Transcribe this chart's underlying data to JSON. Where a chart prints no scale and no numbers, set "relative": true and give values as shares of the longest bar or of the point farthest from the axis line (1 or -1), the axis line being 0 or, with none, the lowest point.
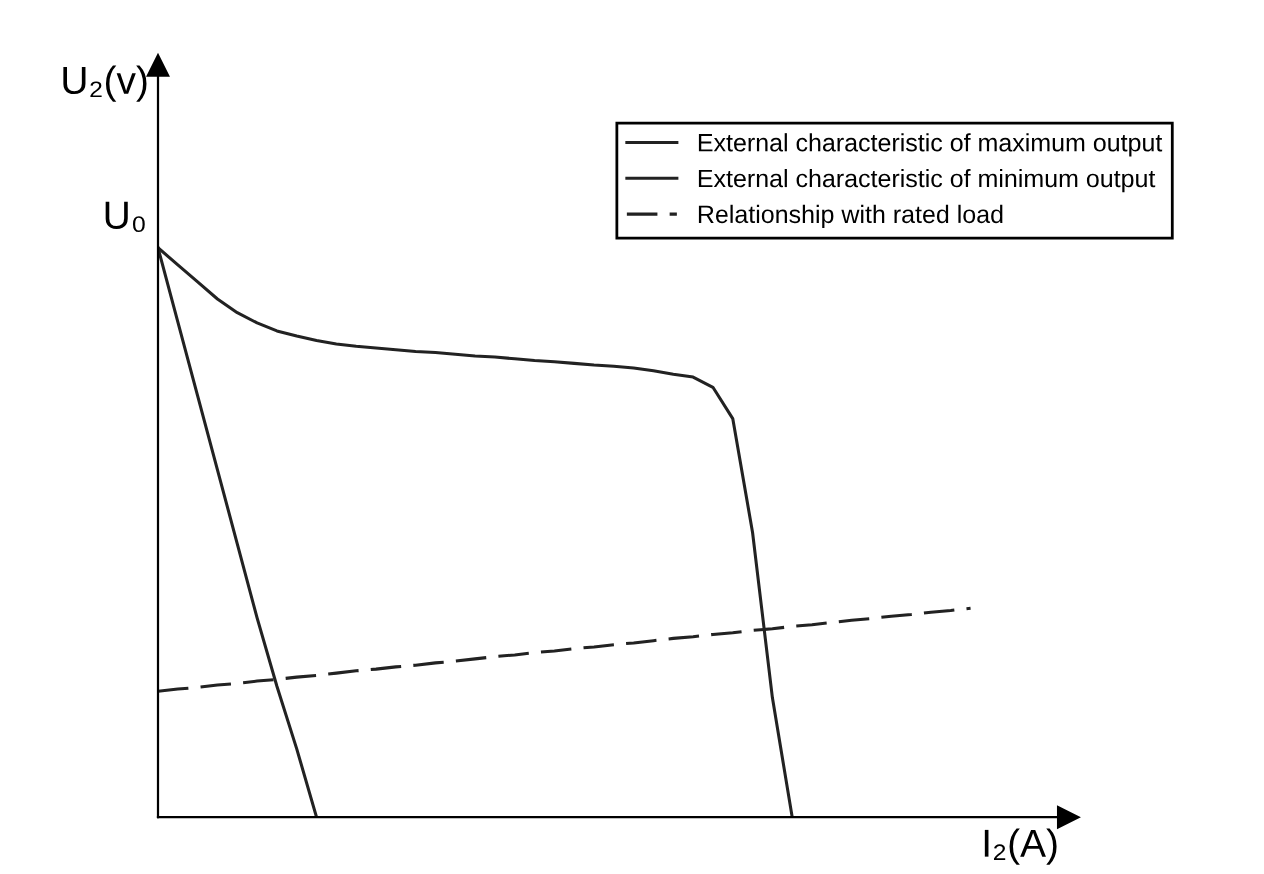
{
  "chart_data": {
    "type": "line",
    "relative": true,
    "xlabel": "I₂(A)",
    "ylabel": "U₂(v)",
    "legend": "top right",
    "marker": "none",
    "annotations": [
      "U₀"
    ],
    "categories": [
      null,
      null,
      null,
      null,
      null,
      null,
      null,
      null,
      null,
      null,
      null,
      null,
      null,
      null,
      null,
      null,
      null,
      null,
      null,
      null,
      null,
      null,
      null,
      null,
      null,
      null,
      null,
      null,
      null,
      null,
      null,
      null,
      null,
      null,
      null,
      null,
      null,
      null,
      null,
      null,
      null,
      null
    ],
    "series": [
      {
        "name": "External characteristic of maximum output",
        "color": "#222222",
        "line_style": "solid",
        "values": [
          1,
          0.97,
          0.94,
          0.91,
          0.886,
          0.868,
          0.854,
          0.845,
          0.837,
          0.831,
          0.827,
          0.824,
          0.821,
          0.818,
          0.816,
          0.813,
          0.81,
          0.808,
          0.805,
          0.802,
          0.8,
          0.797,
          0.794,
          0.792,
          0.789,
          0.784,
          0.778,
          0.773,
          0.755,
          0.7,
          0.5,
          0.21,
          0,
          null,
          null,
          null,
          null,
          null,
          null,
          null,
          null,
          null
        ]
      },
      {
        "name": "External characteristic of minimum output",
        "color": "#222222",
        "line_style": "solid",
        "values": [
          1,
          0.87,
          0.74,
          0.61,
          0.48,
          0.35,
          0.23,
          0.12,
          0,
          null,
          null,
          null,
          null,
          null,
          null,
          null,
          null,
          null,
          null,
          null,
          null,
          null,
          null,
          null,
          null,
          null,
          null,
          null,
          null,
          null,
          null,
          null,
          null,
          null,
          null,
          null,
          null,
          null,
          null,
          null,
          null,
          null
        ]
      },
      {
        "name": "Relationship with rated load",
        "color": "#222222",
        "line_style": "dashed",
        "values": [
          0.221,
          0.225,
          0.228,
          0.232,
          0.235,
          0.239,
          0.242,
          0.246,
          0.249,
          0.253,
          0.257,
          0.26,
          0.264,
          0.267,
          0.271,
          0.274,
          0.278,
          0.282,
          0.285,
          0.289,
          0.292,
          0.296,
          0.299,
          0.303,
          0.306,
          0.31,
          0.314,
          0.317,
          0.321,
          0.324,
          0.328,
          0.331,
          0.335,
          0.338,
          0.342,
          0.346,
          0.349,
          0.353,
          0.356,
          0.36,
          0.363,
          0.367
        ]
      }
    ]
  }
}
